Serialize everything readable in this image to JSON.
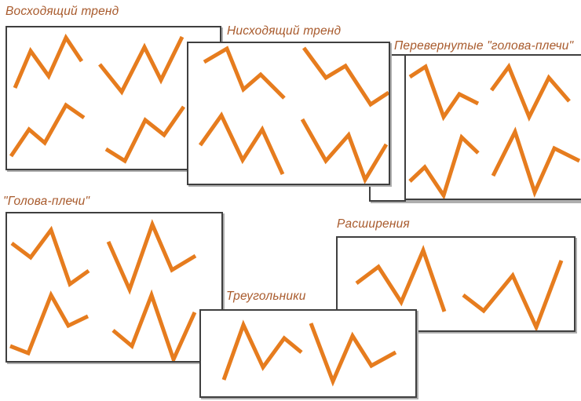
{
  "colors": {
    "pattern_line": "#e67c1e",
    "title_text": "#a85a2c",
    "panel_border": "#3f3f3f",
    "panel_background": "#ffffff"
  },
  "panels": [
    {
      "name": "uptrend",
      "title": "Восходящий тренд",
      "patterns": [
        "10,77 30,30 53,62 75,13 95,43",
        "118,47 146,82 175,25 196,67 223,12",
        "5,164 28,130 48,147 75,99 98,115",
        "126,155 150,170 176,118 200,137 225,101"
      ]
    },
    {
      "name": "downtrend",
      "title": "Нисходящий тренд",
      "patterns": [
        "20,24 49,7 70,59 92,40 122,70",
        "147,6 175,44 200,29 232,78 255,63",
        "15,130 42,92 69,149 94,110 120,167",
        "145,97 175,150 204,117 225,174 252,129"
      ]
    },
    {
      "name": "inverted-head-and-shoulders",
      "title": "Перевернутые \"голова-плечи\"",
      "patterns": [
        "5,27 25,14 48,78 68,49 92,61",
        "109,44 131,14 157,78 182,28 208,58",
        "5,160 24,142 48,178 71,104 92,124",
        "111,153 139,97 164,174 189,118 221,134"
      ]
    },
    {
      "name": "head-and-shoulders",
      "title": "\"Голова-плечи\"",
      "patterns": [
        "6,38 30,56 56,21 80,90 104,73",
        "129,36 156,97 185,14 210,72 240,54",
        "4,169 27,178 56,104 78,143 103,131",
        "135,149 159,169 184,104 212,186 239,126"
      ]
    },
    {
      "name": "triangles",
      "title": "Треугольники",
      "patterns": [
        "29,88 54,18 79,72 106,35 128,53",
        "140,16 168,90 193,32 217,70 248,53"
      ]
    },
    {
      "name": "broadening",
      "title": "Расширения",
      "patterns": [
        "24,58 52,37 81,82 109,16 136,94",
        "160,73 186,93 223,48 253,114 285,29"
      ]
    }
  ]
}
